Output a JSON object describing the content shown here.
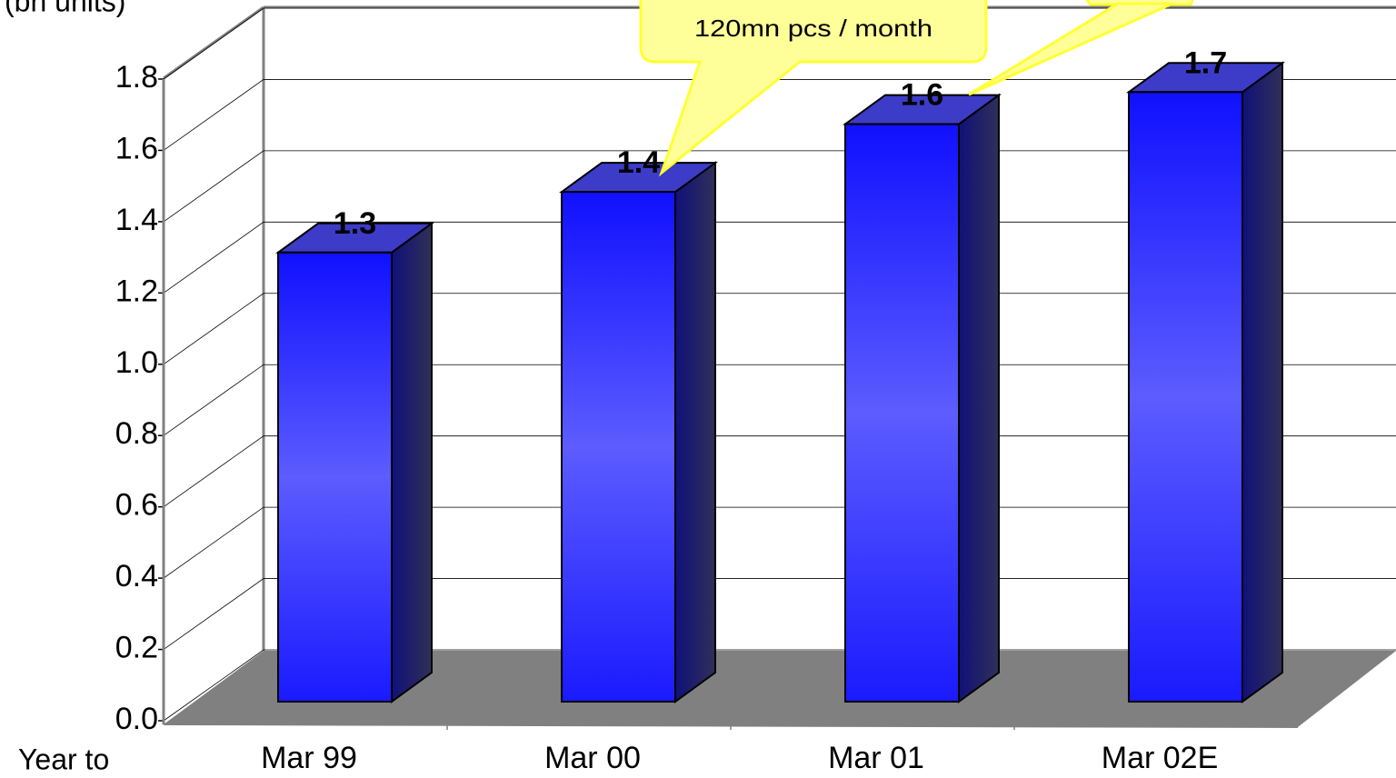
{
  "chart_data": {
    "type": "bar3d",
    "y_axis_label": "(bn units)",
    "x_axis_label": "Year to",
    "annotation": "120mn pcs / month",
    "categories": [
      "Mar 99",
      "Mar 00",
      "Mar 01",
      "Mar 02E"
    ],
    "values": [
      1.26,
      1.43,
      1.62,
      1.71
    ],
    "value_labels": [
      "1.3",
      "1.4",
      "1.6",
      "1.7"
    ],
    "color": "#2222ff",
    "ylim": [
      0,
      1.8
    ],
    "yticks": [
      {
        "value": 0,
        "label": "0.0"
      },
      0.2,
      0.4,
      0.6,
      0.8,
      {
        "value": 1,
        "label": "1.0"
      },
      1.2,
      1.4,
      1.6,
      1.8
    ],
    "grid": true
  }
}
